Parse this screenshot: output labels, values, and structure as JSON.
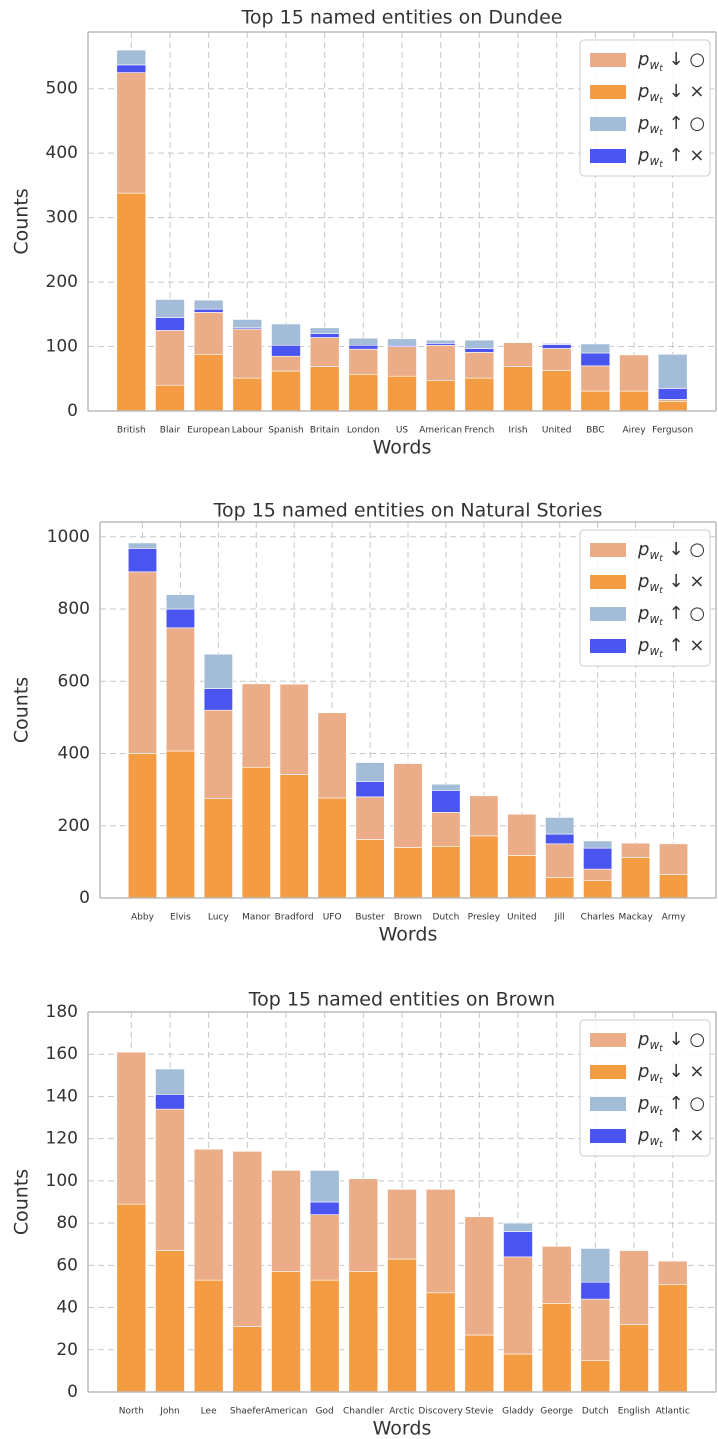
{
  "chart_data": [
    {
      "type": "bar",
      "title": "Top 15 named entities on Dundee",
      "x_label": "Words",
      "y_label": "Counts",
      "categories": [
        "British",
        "Blair",
        "European",
        "Labour",
        "Spanish",
        "Britain",
        "London",
        "US",
        "American",
        "French",
        "Irish",
        "United",
        "BBC",
        "Airey",
        "Ferguson"
      ],
      "series": [
        {
          "name": "pwt ↓ ○",
          "color": "#ebad88",
          "values": [
            187,
            85,
            65,
            76,
            23,
            45,
            39,
            46,
            55,
            40,
            37,
            34,
            39,
            56,
            3
          ]
        },
        {
          "name": "pwt ↓ ×",
          "color": "#f39c44",
          "values": [
            338,
            40,
            88,
            51,
            62,
            69,
            57,
            54,
            47,
            51,
            69,
            63,
            31,
            31,
            15
          ]
        },
        {
          "name": "pwt ↑ ○",
          "color": "#a3bcd8",
          "values": [
            23,
            28,
            14,
            13,
            33,
            9,
            11,
            10,
            5,
            13,
            0,
            2,
            14,
            0,
            53
          ]
        },
        {
          "name": "pwt ↑ ×",
          "color": "#4a55f0",
          "values": [
            12,
            20,
            5,
            2,
            17,
            6,
            6,
            2,
            3,
            6,
            0,
            6,
            20,
            0,
            17
          ]
        }
      ],
      "ylim": [
        0,
        588
      ],
      "yticks": [
        0,
        100,
        200,
        300,
        400,
        500
      ],
      "grid": true,
      "stacked": true,
      "legend": "upper right"
    },
    {
      "type": "bar",
      "title": "Top 15 named entities on Natural Stories",
      "x_label": "Words",
      "y_label": "Counts",
      "categories": [
        "Abby",
        "Elvis",
        "Lucy",
        "Manor",
        "Bradford",
        "UFO",
        "Buster",
        "Brown",
        "Dutch",
        "Presley",
        "United",
        "Jill",
        "Charles",
        "Mackay",
        "Army"
      ],
      "series": [
        {
          "name": "pwt ↓ ○",
          "color": "#ebad88",
          "values": [
            503,
            341,
            245,
            231,
            250,
            236,
            118,
            232,
            94,
            111,
            114,
            93,
            32,
            40,
            85
          ]
        },
        {
          "name": "pwt ↓ ×",
          "color": "#f39c44",
          "values": [
            400,
            407,
            275,
            362,
            342,
            277,
            162,
            140,
            143,
            172,
            118,
            57,
            48,
            112,
            65
          ]
        },
        {
          "name": "pwt ↑ ○",
          "color": "#a3bcd8",
          "values": [
            15,
            40,
            95,
            0,
            0,
            0,
            53,
            0,
            17,
            0,
            0,
            46,
            20,
            0,
            0
          ]
        },
        {
          "name": "pwt ↑ ×",
          "color": "#4a55f0",
          "values": [
            65,
            52,
            60,
            0,
            0,
            0,
            42,
            0,
            61,
            0,
            0,
            27,
            58,
            0,
            0
          ]
        }
      ],
      "ylim": [
        0,
        1041
      ],
      "yticks": [
        0,
        200,
        400,
        600,
        800,
        1000
      ],
      "grid": true,
      "stacked": true,
      "legend": "upper right"
    },
    {
      "type": "bar",
      "title": "Top 15 named entities on Brown",
      "x_label": "Words",
      "y_label": "Counts",
      "categories": [
        "North",
        "John",
        "Lee",
        "Shaefer",
        "American",
        "God",
        "Chandler",
        "Arctic",
        "Discovery",
        "Stevie",
        "Gladdy",
        "George",
        "Dutch",
        "English",
        "Atlantic"
      ],
      "series": [
        {
          "name": "pwt ↓ ○",
          "color": "#ebad88",
          "values": [
            72,
            67,
            62,
            83,
            48,
            31,
            44,
            33,
            49,
            56,
            46,
            27,
            29,
            35,
            11
          ]
        },
        {
          "name": "pwt ↓ ×",
          "color": "#f39c44",
          "values": [
            89,
            67,
            53,
            31,
            57,
            53,
            57,
            63,
            47,
            27,
            18,
            42,
            15,
            32,
            51
          ]
        },
        {
          "name": "pwt ↑ ○",
          "color": "#a3bcd8",
          "values": [
            0,
            12,
            0,
            0,
            0,
            15,
            0,
            0,
            0,
            0,
            4,
            0,
            16,
            0,
            0
          ]
        },
        {
          "name": "pwt ↑ ×",
          "color": "#4a55f0",
          "values": [
            0,
            7,
            0,
            0,
            0,
            6,
            0,
            0,
            0,
            0,
            12,
            0,
            8,
            0,
            0
          ]
        }
      ],
      "ylim": [
        0,
        180
      ],
      "yticks": [
        0,
        20,
        40,
        60,
        80,
        100,
        120,
        140,
        160,
        180
      ],
      "grid": true,
      "stacked": true,
      "legend": "upper right"
    }
  ]
}
